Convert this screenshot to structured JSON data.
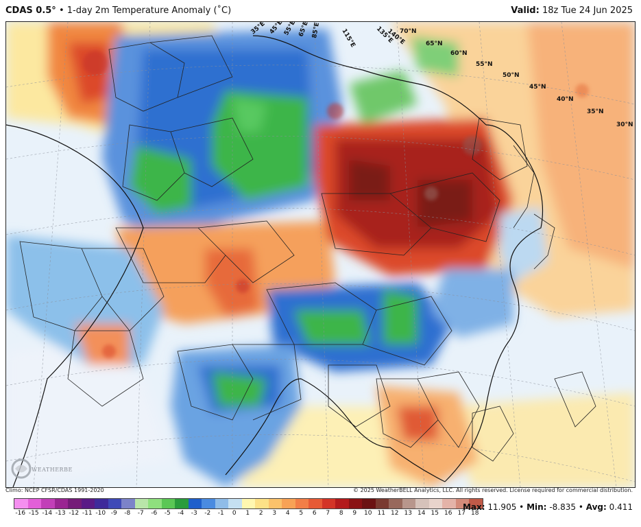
{
  "header": {
    "model": "CDAS 0.5°",
    "bullet": "•",
    "product": "1-day 2m Temperature Anomaly (˚C)",
    "valid_label": "Valid:",
    "valid_time": "18z Tue 24 Jun 2025"
  },
  "map": {
    "lon_labels": [
      "35°E",
      "45°E",
      "55°E",
      "65°E",
      "85°E",
      "115°E",
      "135°E",
      "140°E"
    ],
    "lat_labels": [
      "70°N",
      "65°N",
      "60°N",
      "55°N",
      "50°N",
      "45°N",
      "40°N",
      "35°N",
      "30°N"
    ],
    "logo_text": "WEATHERBELL"
  },
  "footer": {
    "climo": "Climo: NCEP CFSR/CDAS 1991-2020",
    "copyright": "© 2025 WeatherBELL Analytics, LLC. All rights reserved. License required for commercial distribution."
  },
  "legend": {
    "ticks": [
      "-16",
      "-15",
      "-14",
      "-13",
      "-12",
      "-11",
      "-10",
      "-9",
      "-8",
      "-7",
      "-6",
      "-5",
      "-4",
      "-3",
      "-2",
      "-1",
      "0",
      "1",
      "2",
      "3",
      "4",
      "5",
      "6",
      "7",
      "8",
      "9",
      "10",
      "11",
      "12",
      "13",
      "14",
      "15",
      "16",
      "17",
      "18"
    ],
    "colors": [
      "#f58ff0",
      "#e35fd8",
      "#c23fb8",
      "#9a2592",
      "#751c78",
      "#5a1a86",
      "#3e2a9a",
      "#3f4ab7",
      "#7c83c9",
      "#b9e6a9",
      "#8fe07e",
      "#5bc755",
      "#2a9c3c",
      "#1f5fcb",
      "#4a8be0",
      "#8fbce8",
      "#c5e0f2",
      "#fff7b0",
      "#fde187",
      "#fbc26b",
      "#f8a256",
      "#f27e47",
      "#e75a36",
      "#d33427",
      "#b31a1c",
      "#8a1214",
      "#6b1212",
      "#7a3a30",
      "#98685c",
      "#b8968c",
      "#d6c2ba",
      "#e9d4cc",
      "#e4b3a8",
      "#d48b7a",
      "#c05a48"
    ]
  },
  "stats": {
    "max_label": "Max:",
    "max_value": "11.905",
    "min_label": "Min:",
    "min_value": "-8.835",
    "avg_label": "Avg:",
    "avg_value": "0.411",
    "separator": "•"
  }
}
